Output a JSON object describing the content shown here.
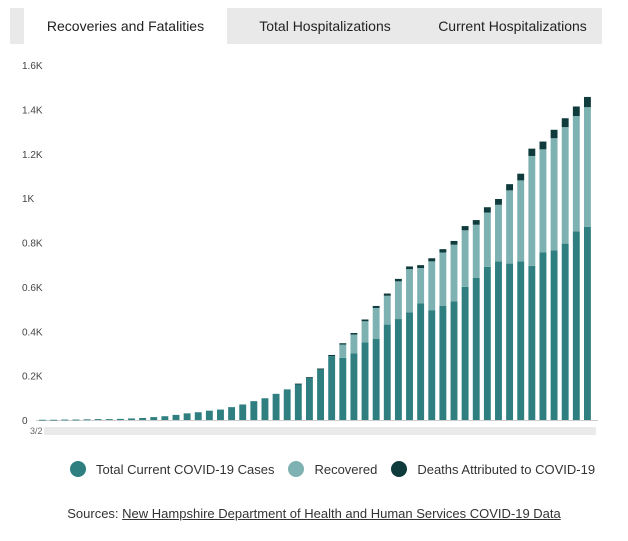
{
  "tabs": [
    {
      "label": "Recoveries and Fatalities",
      "active": true
    },
    {
      "label": "Total Hospitalizations",
      "active": false
    },
    {
      "label": "Current Hospitalizations",
      "active": false
    }
  ],
  "colors": {
    "current_cases": "#2f7f80",
    "recovered": "#7eb1b2",
    "deaths": "#0f3b3c",
    "axis": "#cccccc",
    "tab_bar": "#e9e9e9"
  },
  "chart_data": {
    "type": "bar",
    "stacked": true,
    "x_tick_label_first": "3/2",
    "ylim": [
      0,
      1600
    ],
    "yticks": [
      {
        "value": 0,
        "label": "0"
      },
      {
        "value": 200,
        "label": "0.2K"
      },
      {
        "value": 400,
        "label": "0.4K"
      },
      {
        "value": 600,
        "label": "0.6K"
      },
      {
        "value": 800,
        "label": "0.8K"
      },
      {
        "value": 1000,
        "label": "1K"
      },
      {
        "value": 1200,
        "label": "1.2K"
      },
      {
        "value": 1400,
        "label": "1.4K"
      },
      {
        "value": 1600,
        "label": "1.6K"
      }
    ],
    "legend_position": "bottom",
    "series": [
      {
        "name": "Total Current COVID-19 Cases",
        "values": [
          1,
          1,
          2,
          2,
          3,
          4,
          4,
          5,
          7,
          9,
          13,
          17,
          23,
          30,
          35,
          42,
          47,
          58,
          70,
          85,
          98,
          118,
          138,
          162,
          190,
          228,
          288,
          280,
          300,
          350,
          365,
          430,
          455,
          485,
          525,
          495,
          515,
          535,
          600,
          640,
          690,
          715,
          705,
          715,
          695,
          755,
          765,
          795,
          850,
          870
        ]
      },
      {
        "name": "Recovered",
        "values": [
          0,
          0,
          0,
          0,
          0,
          0,
          0,
          0,
          0,
          0,
          0,
          0,
          0,
          0,
          0,
          0,
          0,
          0,
          0,
          0,
          0,
          0,
          0,
          0,
          0,
          0,
          0,
          60,
          85,
          95,
          140,
          130,
          170,
          195,
          160,
          220,
          240,
          255,
          255,
          240,
          245,
          255,
          330,
          365,
          495,
          465,
          505,
          525,
          520,
          540
        ]
      },
      {
        "name": "Deaths Attributed to COVID-19",
        "values": [
          0,
          0,
          0,
          0,
          0,
          0,
          0,
          0,
          0,
          0,
          0,
          0,
          0,
          0,
          0,
          0,
          0,
          0,
          0,
          0,
          0,
          0,
          0,
          2,
          3,
          4,
          5,
          6,
          7,
          8,
          9,
          10,
          11,
          12,
          13,
          14,
          15,
          17,
          19,
          21,
          24,
          26,
          28,
          30,
          33,
          35,
          38,
          40,
          43,
          46
        ]
      }
    ]
  },
  "legend": [
    {
      "label": "Total Current COVID-19 Cases",
      "color": "#2f7f80"
    },
    {
      "label": "Recovered",
      "color": "#7eb1b2"
    },
    {
      "label": "Deaths Attributed to COVID-19",
      "color": "#0f3b3c"
    }
  ],
  "sources": {
    "prefix": "Sources:",
    "link_text": "New Hampshire Department of Health and Human Services COVID-19 Data"
  }
}
